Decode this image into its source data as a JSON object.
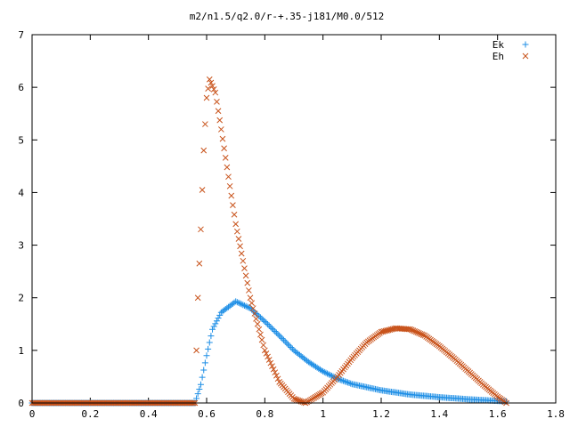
{
  "chart_data": {
    "type": "scatter",
    "title": "m2/n1.5/q2.0/r-+.35-j181/M0.0/512",
    "xlabel": "",
    "ylabel": "",
    "xlim": [
      0,
      1.8
    ],
    "ylim": [
      0,
      7
    ],
    "xticks": [
      "0",
      "0.2",
      "0.4",
      "0.6",
      "0.8",
      "1",
      "1.2",
      "1.4",
      "1.6",
      "1.8"
    ],
    "yticks": [
      "0",
      "1",
      "2",
      "3",
      "4",
      "5",
      "6",
      "7"
    ],
    "grid": false,
    "legend_position": "top-right",
    "series": [
      {
        "name": "Ek",
        "marker": "plus",
        "color": "#1f8fe6",
        "x": [
          0.56,
          0.58,
          0.6,
          0.62,
          0.65,
          0.7,
          0.75,
          0.8,
          0.85,
          0.9,
          0.95,
          1.0,
          1.05,
          1.1,
          1.2,
          1.3,
          1.4,
          1.5,
          1.6,
          1.63
        ],
        "y": [
          0.0,
          0.35,
          0.9,
          1.4,
          1.72,
          1.93,
          1.8,
          1.55,
          1.28,
          1.0,
          0.78,
          0.6,
          0.46,
          0.36,
          0.24,
          0.16,
          0.11,
          0.07,
          0.04,
          0.03
        ]
      },
      {
        "name": "Eh",
        "marker": "cross",
        "color": "#c8521a",
        "x": [
          0.0,
          0.56,
          0.57,
          0.58,
          0.59,
          0.6,
          0.61,
          0.63,
          0.65,
          0.7,
          0.75,
          0.8,
          0.85,
          0.9,
          0.94,
          1.0,
          1.05,
          1.1,
          1.15,
          1.2,
          1.25,
          1.3,
          1.35,
          1.4,
          1.45,
          1.5,
          1.55,
          1.6,
          1.63
        ],
        "y": [
          0.0,
          0.0,
          2.0,
          3.3,
          4.8,
          5.8,
          6.15,
          5.9,
          5.2,
          3.4,
          2.0,
          1.0,
          0.4,
          0.08,
          0.0,
          0.2,
          0.5,
          0.85,
          1.15,
          1.35,
          1.42,
          1.4,
          1.28,
          1.08,
          0.85,
          0.6,
          0.35,
          0.12,
          0.0
        ]
      }
    ]
  }
}
